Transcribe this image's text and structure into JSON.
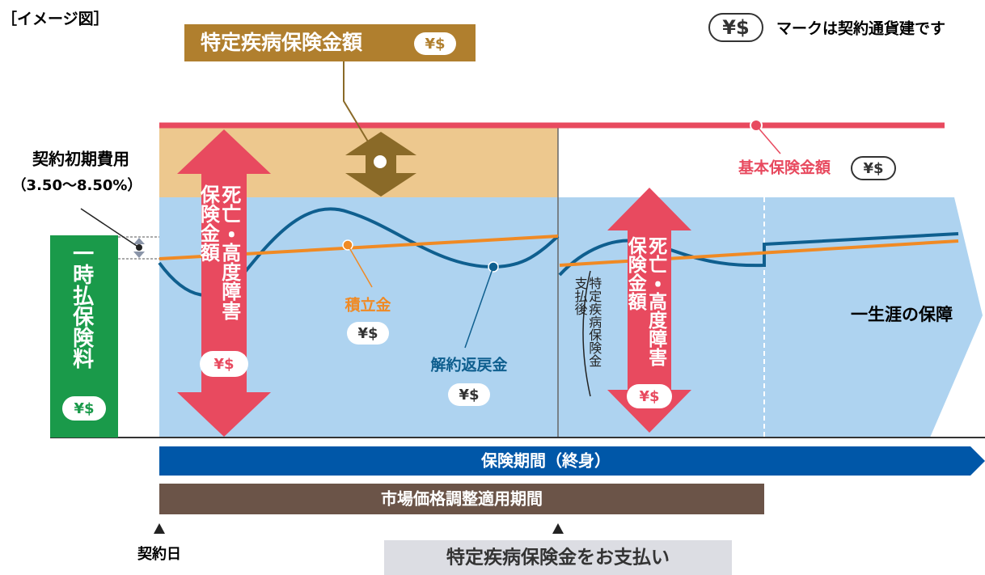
{
  "image_label": "［イメージ図］",
  "currency_mark": "¥$",
  "legend_text": "マークは契約通貨建です",
  "specific_disease_amount": "特定疾病保険金額",
  "initial_cost": {
    "title": "契約初期費用",
    "range": "（3.50〜8.50%）"
  },
  "single_premium": "一時払保険料",
  "death_benefit": "死亡・高度障害保険金額",
  "reserve": "積立金",
  "surrender_value": "解約返戻金",
  "basic_amount": "基本保険金額",
  "after_payment": "特定疾病保険金支払後",
  "lifetime": "一生涯の保障",
  "period": "保険期間（終身）",
  "mva_period": "市場価格調整適用期間",
  "contract_date": "契約日",
  "payment_event": "特定疾病保険金をお支払い"
}
